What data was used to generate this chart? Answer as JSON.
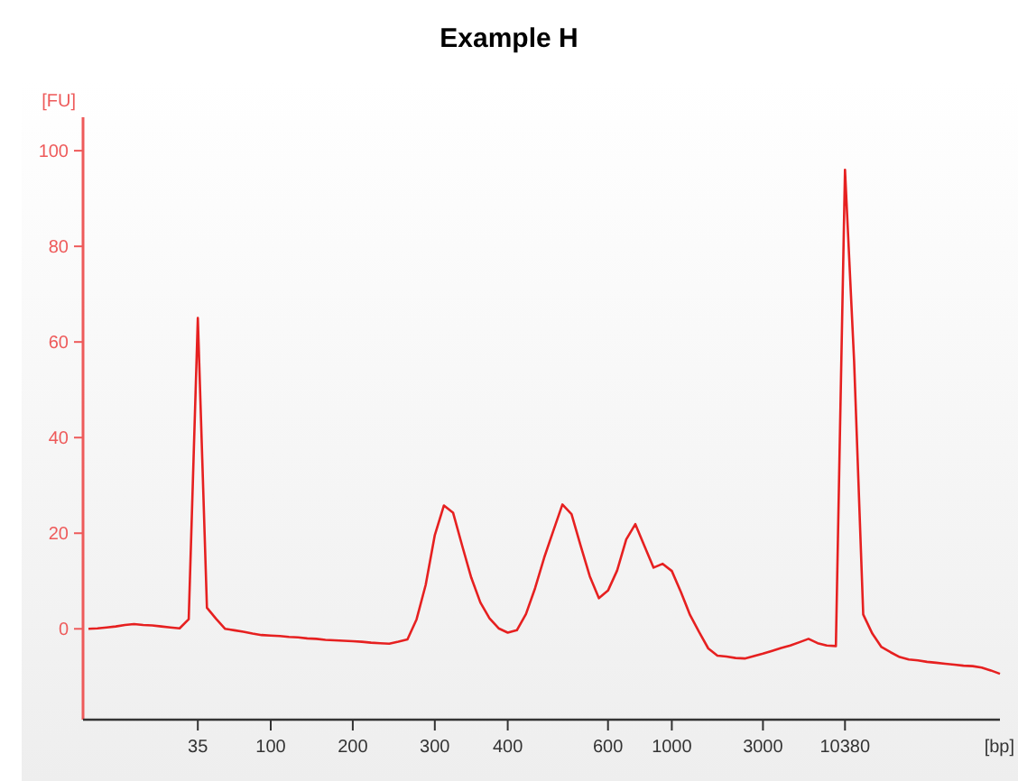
{
  "chart_data": {
    "type": "line",
    "title": "Example H",
    "xlabel": "[bp]",
    "ylabel": "[FU]",
    "categories": [
      null,
      null,
      null,
      null,
      null,
      null,
      null,
      null,
      null,
      null,
      null,
      null,
      "35",
      null,
      null,
      null,
      null,
      null,
      null,
      null,
      "100",
      null,
      null,
      null,
      null,
      null,
      null,
      null,
      null,
      "200",
      null,
      null,
      null,
      null,
      null,
      null,
      null,
      null,
      "300",
      null,
      null,
      null,
      null,
      null,
      null,
      null,
      "400",
      null,
      null,
      null,
      null,
      null,
      null,
      null,
      null,
      null,
      null,
      "600",
      null,
      null,
      null,
      null,
      null,
      null,
      "1000",
      null,
      null,
      null,
      null,
      null,
      null,
      null,
      null,
      null,
      "3000",
      null,
      null,
      null,
      null,
      null,
      null,
      null,
      null,
      "10380",
      null,
      null,
      null,
      null,
      null,
      null,
      null,
      null,
      null,
      null,
      null,
      null,
      null,
      null,
      null,
      null,
      null
    ],
    "ylim": [
      -19,
      107
    ],
    "yticks": [
      0,
      20,
      40,
      60,
      80,
      100
    ],
    "grid": false,
    "line_style": "solid",
    "series": [
      {
        "color": "#e62020",
        "values": [
          0,
          0.1,
          0.3,
          0.5,
          0.8,
          1,
          0.8,
          0.7,
          0.5,
          0.3,
          0.1,
          2,
          65,
          4.4,
          2.1,
          0,
          -0.3,
          -0.6,
          -1,
          -1.3,
          -1.4,
          -1.5,
          -1.7,
          -1.8,
          -2,
          -2.1,
          -2.3,
          -2.4,
          -2.5,
          -2.6,
          -2.7,
          -2.9,
          -3,
          -3.1,
          -2.7,
          -2.2,
          2,
          9.2,
          19.6,
          25.8,
          24.3,
          17.4,
          10.7,
          5.5,
          2.2,
          0.1,
          -0.8,
          -0.3,
          3.1,
          8.5,
          14.9,
          20.5,
          26,
          24,
          17.4,
          11,
          6.4,
          8,
          12.2,
          18.7,
          21.9,
          17.3,
          12.8,
          13.6,
          12.1,
          7.7,
          2.9,
          -0.7,
          -4.1,
          -5.6,
          -5.8,
          -6.1,
          -6.2,
          -5.7,
          -5.2,
          -4.6,
          -4,
          -3.5,
          -2.8,
          -2.1,
          -3,
          -3.5,
          -3.6,
          96,
          56,
          3,
          -1,
          -3.8,
          -4.9,
          -5.9,
          -6.4,
          -6.6,
          -6.9,
          -7.1,
          -7.3,
          -7.5,
          -7.7,
          -7.8,
          -8.1,
          -8.7,
          -9.4
        ]
      }
    ]
  }
}
